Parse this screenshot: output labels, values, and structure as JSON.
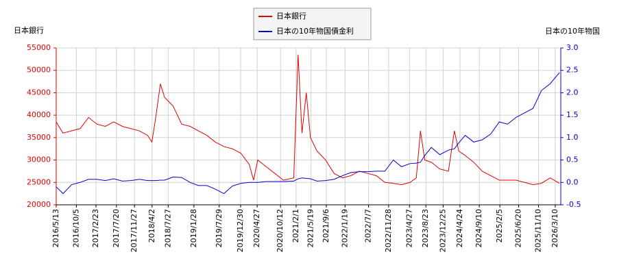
{
  "chart_data": {
    "type": "line",
    "y_label": "日本銀行",
    "y2_label": "日本の10年物国",
    "x": [
      "2016/5/13",
      "2016/7/1",
      "2016/9/1",
      "2016/11/1",
      "2017/1/1",
      "2017/3/1",
      "2017/5/1",
      "2017/7/1",
      "2017/9/1",
      "2017/11/1",
      "2018/1/1",
      "2018/3/1",
      "2018/4/1",
      "2018/5/1",
      "2018/6/1",
      "2018/7/1",
      "2018/9/1",
      "2018/11/1",
      "2019/1/1",
      "2019/3/1",
      "2019/5/1",
      "2019/7/1",
      "2019/9/1",
      "2019/11/1",
      "2020/1/1",
      "2020/3/1",
      "2020/4/1",
      "2020/5/1",
      "2020/7/1",
      "2020/9/1",
      "2020/11/1",
      "2021/1/15",
      "2021/2/15",
      "2021/3/15",
      "2021/4/15",
      "2021/5/15",
      "2021/7/1",
      "2021/9/1",
      "2021/11/1",
      "2022/1/1",
      "2022/3/1",
      "2022/5/1",
      "2022/7/1",
      "2022/9/1",
      "2022/11/1",
      "2023/1/1",
      "2023/3/1",
      "2023/5/1",
      "2023/6/15",
      "2023/7/15",
      "2023/8/15",
      "2023/10/1",
      "2023/12/1",
      "2024/2/1",
      "2024/3/15",
      "2024/4/15",
      "2024/6/1",
      "2024/8/1",
      "2024/10/1",
      "2024/12/1",
      "2025/2/1",
      "2025/4/1",
      "2025/6/1",
      "2025/8/1",
      "2025/10/1",
      "2025/12/1",
      "2026/2/1",
      "2026/4/10"
    ],
    "series": [
      {
        "name": "日本銀行",
        "color": "#e00000",
        "axis": "y",
        "values": [
          38500,
          36000,
          36500,
          37000,
          39500,
          38000,
          37500,
          38500,
          37500,
          37000,
          36500,
          35500,
          34000,
          40000,
          47000,
          44000,
          42000,
          38000,
          37500,
          36500,
          35500,
          34000,
          33000,
          32500,
          31500,
          29000,
          25500,
          30000,
          28500,
          27000,
          25500,
          26000,
          53500,
          36000,
          45000,
          35000,
          32000,
          30000,
          27000,
          26000,
          26500,
          27500,
          27000,
          26500,
          25000,
          24800,
          24500,
          25000,
          26000,
          36500,
          30000,
          29500,
          28000,
          27500,
          36500,
          32000,
          31000,
          29500,
          27500,
          26500,
          25500,
          25500,
          25500,
          25000,
          24500,
          24800,
          26000,
          24800
        ]
      },
      {
        "name": "日本の10年物国債金利",
        "color": "#0000cc",
        "axis": "y2",
        "values": [
          -0.1,
          -0.25,
          -0.05,
          0.0,
          0.07,
          0.07,
          0.04,
          0.08,
          0.03,
          0.04,
          0.07,
          0.04,
          0.04,
          0.04,
          0.05,
          0.05,
          0.12,
          0.11,
          0.0,
          -0.07,
          -0.07,
          -0.15,
          -0.25,
          -0.08,
          -0.02,
          0.0,
          0.0,
          0.0,
          0.02,
          0.02,
          0.02,
          0.03,
          0.08,
          0.1,
          0.09,
          0.08,
          0.03,
          0.04,
          0.07,
          0.15,
          0.22,
          0.24,
          0.24,
          0.25,
          0.25,
          0.5,
          0.35,
          0.42,
          0.43,
          0.45,
          0.6,
          0.78,
          0.62,
          0.72,
          0.75,
          0.88,
          1.05,
          0.9,
          0.95,
          1.08,
          1.35,
          1.3,
          1.45,
          1.55,
          1.65,
          2.05,
          2.2,
          2.45
        ]
      }
    ],
    "xlim": [
      "2016/5/13",
      "2026/4/19"
    ],
    "xticks": [
      "2016/5/13",
      "2016/10/5",
      "2017/2/23",
      "2017/7/20",
      "2017/11/27",
      "2018/4/2",
      "2018/7/27",
      "2019/1/28",
      "2019/7/29",
      "2019/12/30",
      "2020/4/27",
      "2020/10/12",
      "2021/2/1",
      "2021/5/19",
      "2021/9/6",
      "2022/1/19",
      "2022/7/7",
      "2022/11/28",
      "2023/4/27",
      "2023/8/23",
      "2023/12/25",
      "2024/4/24",
      "2024/9/10",
      "2025/2/5",
      "2025/6/20",
      "2025/11/10",
      "2026/3/10"
    ],
    "ylim": [
      20000,
      55000
    ],
    "yticks": [
      20000,
      25000,
      30000,
      35000,
      40000,
      45000,
      50000,
      55000
    ],
    "y2lim": [
      -0.5,
      3.0
    ],
    "y2ticks": [
      -0.5,
      {
        "value": 0,
        "label": "0.0"
      },
      0.5,
      {
        "value": 1,
        "label": "1.0"
      },
      1.5,
      {
        "value": 2,
        "label": "2.0"
      },
      2.5,
      {
        "value": 3,
        "label": "3.0"
      }
    ],
    "grid": true
  }
}
